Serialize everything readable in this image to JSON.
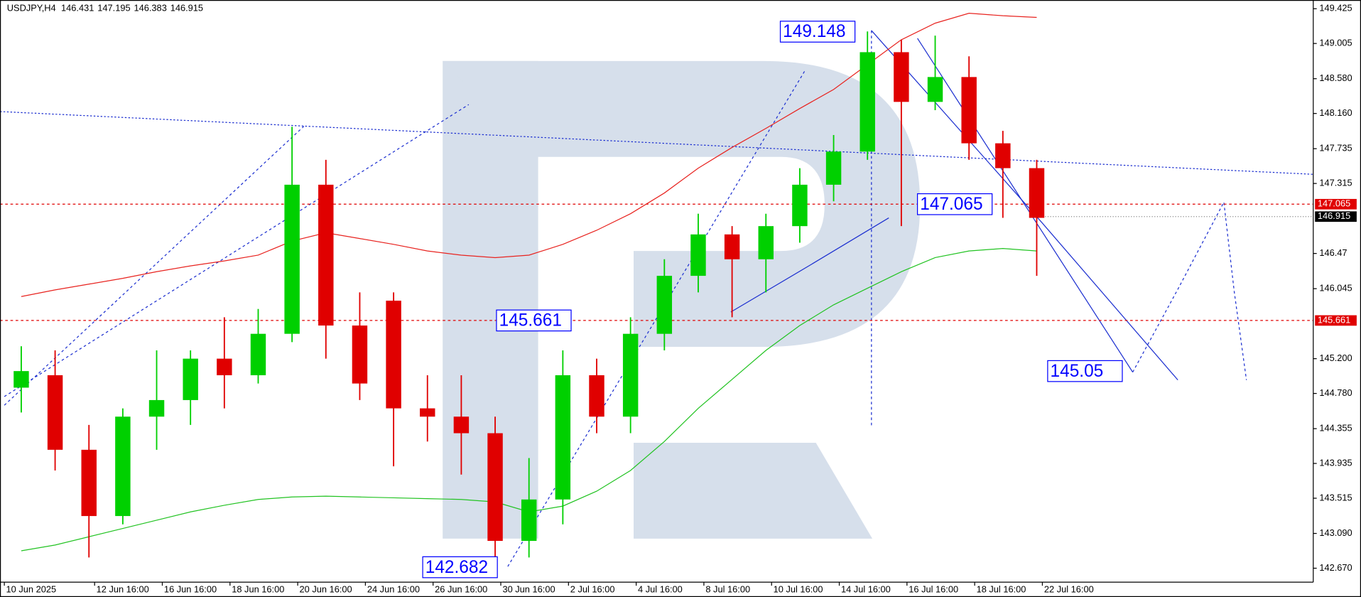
{
  "chart_data": {
    "type": "candlestick",
    "symbol": "USDJPY,H4",
    "ohlc": [
      146.431,
      147.195,
      146.383,
      146.915
    ],
    "x": [
      0.5,
      1.5,
      2.5,
      3.5,
      4.5,
      5.5,
      6.5,
      7.5,
      8.5,
      9.5,
      10.5,
      11.5,
      12.5,
      13.5,
      14.5,
      15.5,
      16.5,
      17.5,
      18.5,
      19.5,
      20.5,
      21.5,
      22.5,
      23.5,
      24.5,
      25.5,
      26.5,
      27.5,
      28.5,
      29.5,
      30.5
    ],
    "open": [
      144.85,
      145.0,
      144.1,
      143.3,
      144.5,
      144.7,
      145.2,
      145.0,
      145.5,
      147.3,
      145.6,
      145.9,
      144.6,
      144.5,
      144.3,
      143.0,
      143.5,
      145.0,
      144.5,
      145.5,
      146.2,
      146.7,
      146.4,
      146.8,
      147.3,
      147.7,
      148.9,
      148.3,
      148.6,
      147.8,
      147.5
    ],
    "high": [
      145.35,
      145.3,
      144.4,
      144.6,
      145.3,
      145.3,
      145.7,
      145.8,
      148.0,
      147.6,
      146.0,
      146.0,
      145.0,
      145.0,
      144.5,
      144.0,
      145.3,
      145.2,
      145.7,
      146.4,
      146.95,
      146.8,
      146.95,
      147.5,
      147.9,
      149.15,
      149.05,
      149.1,
      148.85,
      147.95,
      147.6
    ],
    "low": [
      144.55,
      143.85,
      142.8,
      143.2,
      144.1,
      144.4,
      144.6,
      144.9,
      145.4,
      145.2,
      144.7,
      143.9,
      144.2,
      143.8,
      142.7,
      142.8,
      143.2,
      144.3,
      144.3,
      145.3,
      146.0,
      145.7,
      146.0,
      146.6,
      147.1,
      147.6,
      146.8,
      148.2,
      147.6,
      146.9,
      146.2
    ],
    "close": [
      145.05,
      144.1,
      143.3,
      144.5,
      144.7,
      145.2,
      145.0,
      145.5,
      147.3,
      145.6,
      144.9,
      144.6,
      144.5,
      144.3,
      143.0,
      143.5,
      145.0,
      144.5,
      145.5,
      146.2,
      146.7,
      146.4,
      146.8,
      147.3,
      147.7,
      148.9,
      148.3,
      148.6,
      147.8,
      147.5,
      146.9
    ],
    "up_color": "#00d000",
    "down_color": "#e00000",
    "series": [
      {
        "color": "#e8231f",
        "values": [
          145.95,
          146.03,
          146.1,
          146.17,
          146.25,
          146.32,
          146.38,
          146.45,
          146.62,
          146.72,
          146.65,
          146.58,
          146.5,
          146.45,
          146.42,
          146.45,
          146.58,
          146.75,
          146.95,
          147.2,
          147.5,
          147.75,
          147.98,
          148.22,
          148.45,
          148.75,
          149.05,
          149.25,
          149.37,
          149.34,
          149.32
        ]
      },
      {
        "color": "#22c322",
        "values": [
          142.88,
          142.95,
          143.05,
          143.15,
          143.25,
          143.35,
          143.43,
          143.5,
          143.53,
          143.54,
          143.53,
          143.52,
          143.51,
          143.5,
          143.47,
          143.35,
          143.42,
          143.6,
          143.85,
          144.2,
          144.6,
          144.95,
          145.3,
          145.6,
          145.85,
          146.05,
          146.25,
          146.42,
          146.5,
          146.53,
          146.5
        ]
      }
    ],
    "xlim": [
      -0.128,
      38.67
    ],
    "xticks": [
      {
        "value": 0,
        "label": "10 Jun 2025"
      },
      {
        "value": 2.667,
        "label": "12 Jun 16:00"
      },
      {
        "value": 4.667,
        "label": "16 Jun 16:00"
      },
      {
        "value": 6.667,
        "label": "18 Jun 16:00"
      },
      {
        "value": 8.667,
        "label": "20 Jun 16:00"
      },
      {
        "value": 10.667,
        "label": "24 Jun 16:00"
      },
      {
        "value": 12.667,
        "label": "26 Jun 16:00"
      },
      {
        "value": 14.667,
        "label": "30 Jun 16:00"
      },
      {
        "value": 16.667,
        "label": "2 Jul 16:00"
      },
      {
        "value": 18.667,
        "label": "4 Jul 16:00"
      },
      {
        "value": 20.667,
        "label": "8 Jul 16:00"
      },
      {
        "value": 22.667,
        "label": "10 Jul 16:00"
      },
      {
        "value": 24.667,
        "label": "14 Jul 16:00"
      },
      {
        "value": 26.667,
        "label": "16 Jul 16:00"
      },
      {
        "value": 28.667,
        "label": "18 Jul 16:00"
      },
      {
        "value": 30.667,
        "label": "22 Jul 16:00"
      }
    ],
    "ylim": [
      142.533,
      149.53
    ],
    "yticks": [
      149.425,
      149.005,
      {
        "value": 148.58,
        "label": "148.580"
      },
      {
        "value": 148.16,
        "label": "148.160"
      },
      147.735,
      147.315,
      146.47,
      146.045,
      {
        "value": 145.2,
        "label": "145.200"
      },
      {
        "value": 144.78,
        "label": "144.780"
      },
      144.355,
      143.935,
      143.515,
      {
        "value": 143.09,
        "label": "143.090"
      },
      {
        "value": 142.67,
        "label": "142.670"
      }
    ],
    "price_lines": [
      147.065,
      145.661
    ],
    "current_price": 146.915,
    "annotations": [
      149.148,
      147.065,
      145.661,
      145.05,
      142.682
    ]
  }
}
